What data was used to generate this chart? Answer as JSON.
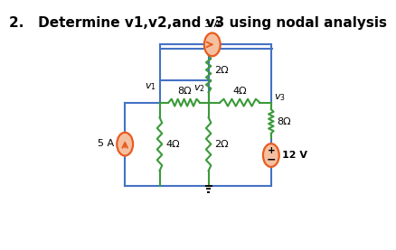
{
  "title": "2.   Determine v1,v2,and v3 using nodal analysis",
  "title_fontsize": 11,
  "bg_color": "#ffffff",
  "wire_color": "#4472c4",
  "resistor_color": "#3a9a3a",
  "source_orange": "#e85c20",
  "source_fill": "#f5c0a0",
  "text_color": "#000000",
  "lw_wire": 1.5,
  "lw_res": 1.5,
  "lw_src": 1.6
}
